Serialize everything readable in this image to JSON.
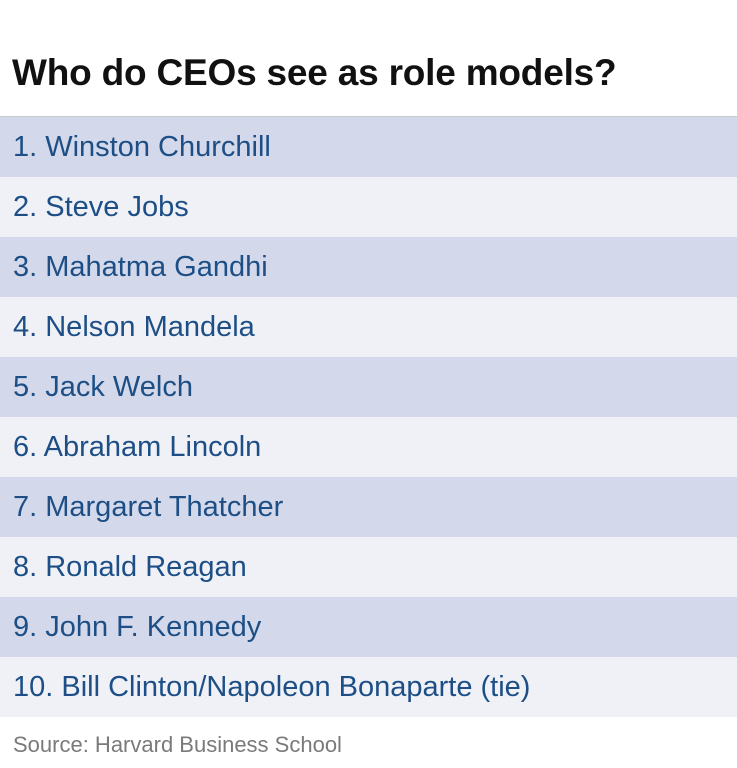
{
  "title": "Who do CEOs see as role models?",
  "rows": [
    "1. Winston Churchill",
    "2. Steve Jobs",
    "3. Mahatma Gandhi",
    "4. Nelson Mandela",
    "5. Jack Welch",
    "6. Abraham Lincoln",
    "7. Margaret Thatcher",
    "8. Ronald Reagan",
    "9. John F. Kennedy",
    "10. Bill Clinton/Napoleon Bonaparte (tie)"
  ],
  "source": "Source: Harvard Business School",
  "colors": {
    "row_dark": "#d3d9ea",
    "row_light": "#eff1f7",
    "text_blue": "#1d4f86",
    "source_gray": "#7a7a7a"
  }
}
